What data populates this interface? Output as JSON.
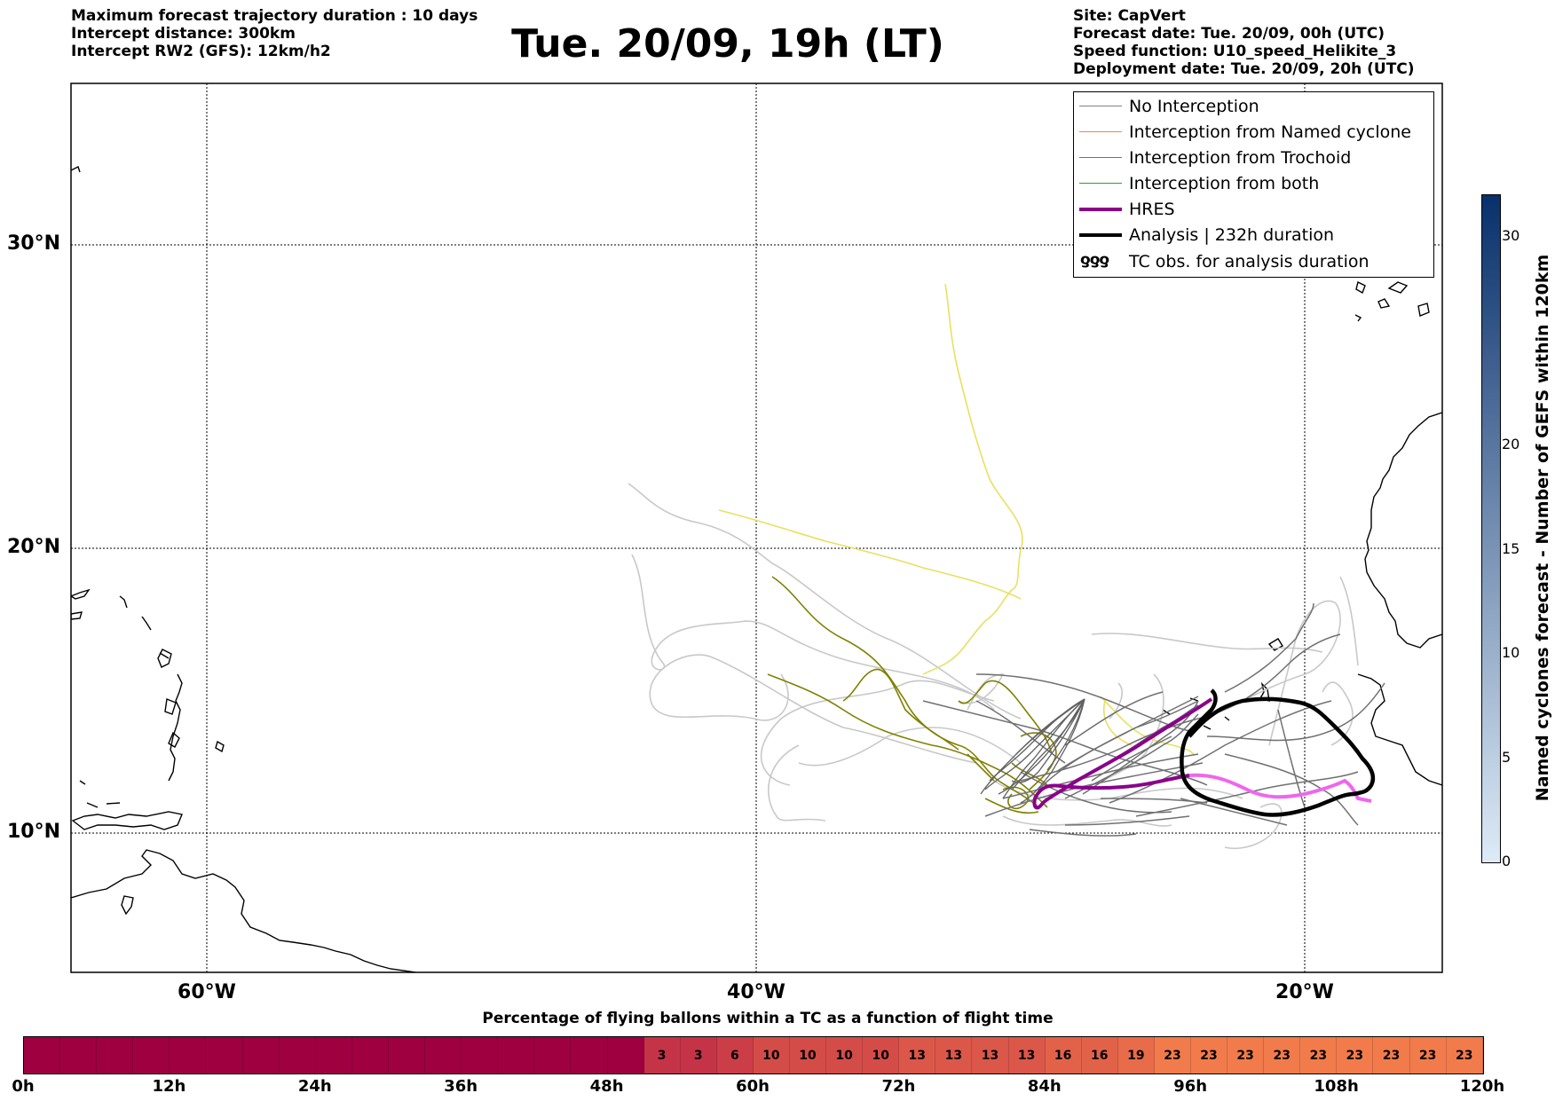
{
  "header": {
    "left": [
      "Maximum forecast trajectory duration : 10 days",
      "Intercept distance: 300km",
      "Intercept RW2 (GFS):  12km/h2"
    ],
    "title": "Tue. 20/09, 19h (LT)",
    "right": [
      "Site: CapVert",
      "Forecast date: Tue. 20/09, 00h (UTC)",
      "Speed function: U10_speed_Helikite_3",
      "Deployment date: Tue. 20/09, 20h (UTC)"
    ]
  },
  "map": {
    "lat_labels": [
      "30°N",
      "20°N",
      "10°N"
    ],
    "lon_labels": [
      "60°W",
      "40°W",
      "20°W"
    ],
    "colors": {
      "no_interception": "#707070",
      "named_cyclone": "#ff7f50",
      "trochoid": "#808000",
      "both": "#2ca02c",
      "hres": "#8b008b",
      "analysis": "#000000",
      "gefs_light": "#c8c8c8",
      "yellow": "#e8e060",
      "pink": "#ee66ee"
    }
  },
  "legend": {
    "items": [
      {
        "label": "No Interception",
        "color": "#808080",
        "width": 1.5
      },
      {
        "label": "Interception from Named cyclone",
        "color": "#ff7f50",
        "width": 1.5
      },
      {
        "label": "Interception from Trochoid",
        "color": "#808000",
        "width": 1.5
      },
      {
        "label": "Interception from both",
        "color": "#2ca02c",
        "width": 1.5
      },
      {
        "label": "HRES",
        "color": "#8b008b",
        "width": 4
      },
      {
        "label": "Analysis | 232h duration",
        "color": "#000000",
        "width": 4
      }
    ],
    "tc_obs_label": "TC obs. for analysis duration",
    "tc_obs_symbol": "ƍƍƍ"
  },
  "colorbar_vertical": {
    "label": "Named cyclones forecast - Number of GEFS within 120km",
    "ticks": [
      "0",
      "5",
      "10",
      "15",
      "20",
      "30"
    ],
    "tick_values": [
      0,
      5,
      10,
      15,
      20,
      30
    ],
    "max": 32
  },
  "colorbar_horizontal": {
    "title": "Percentage of flying ballons within a TC as a function of flight time",
    "cells": [
      "",
      "",
      "",
      "",
      "",
      "",
      "",
      "",
      "",
      "",
      "",
      "",
      "",
      "",
      "",
      "",
      "",
      "3",
      "3",
      "6",
      "10",
      "10",
      "10",
      "10",
      "13",
      "13",
      "13",
      "13",
      "16",
      "16",
      "19",
      "23",
      "23",
      "23",
      "23",
      "23",
      "23",
      "23",
      "23",
      "23"
    ],
    "tick_labels": [
      "0h",
      "12h",
      "24h",
      "36h",
      "48h",
      "60h",
      "72h",
      "84h",
      "96h",
      "108h",
      "120h"
    ]
  }
}
